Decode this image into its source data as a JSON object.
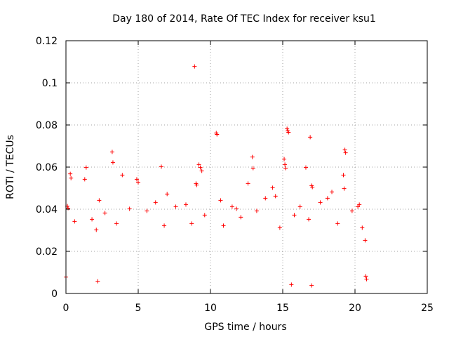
{
  "chart_data": {
    "type": "scatter",
    "title": "Day 180 of 2014, Rate Of TEC Index for receiver ksu1",
    "xlabel": "GPS time / hours",
    "ylabel": "ROTI / TECUs",
    "xlim": [
      0,
      25
    ],
    "ylim": [
      0,
      0.12
    ],
    "xticks": [
      0,
      5,
      10,
      15,
      20,
      25
    ],
    "xtick_labels": [
      "0",
      "5",
      "10",
      "15",
      "20",
      "25"
    ],
    "yticks": [
      0,
      0.02,
      0.04,
      0.06,
      0.08,
      0.1,
      0.12
    ],
    "ytick_labels": [
      "0",
      "0.02",
      "0.04",
      "0.06",
      "0.08",
      "0.1",
      "0.12"
    ],
    "grid": true,
    "marker": "+",
    "series_color": "#ff0000",
    "series": [
      {
        "name": "ROTI",
        "points": [
          [
            8.9,
            0.1078
          ],
          [
            10.4,
            0.0762
          ],
          [
            10.45,
            0.0755
          ],
          [
            15.3,
            0.0782
          ],
          [
            15.35,
            0.0772
          ],
          [
            15.4,
            0.0765
          ],
          [
            16.9,
            0.0742
          ],
          [
            3.2,
            0.0672
          ],
          [
            3.25,
            0.0622
          ],
          [
            19.3,
            0.0682
          ],
          [
            19.35,
            0.0668
          ],
          [
            12.9,
            0.0648
          ],
          [
            12.95,
            0.0595
          ],
          [
            15.1,
            0.0638
          ],
          [
            15.15,
            0.0612
          ],
          [
            15.2,
            0.0595
          ],
          [
            6.6,
            0.0602
          ],
          [
            9.3,
            0.0598
          ],
          [
            9.4,
            0.0582
          ],
          [
            9.2,
            0.0612
          ],
          [
            16.6,
            0.0598
          ],
          [
            0.3,
            0.0568
          ],
          [
            0.35,
            0.0548
          ],
          [
            1.4,
            0.0598
          ],
          [
            1.3,
            0.0542
          ],
          [
            3.9,
            0.0562
          ],
          [
            17.0,
            0.0512
          ],
          [
            17.05,
            0.0505
          ],
          [
            19.2,
            0.0562
          ],
          [
            19.25,
            0.0498
          ],
          [
            9.0,
            0.0522
          ],
          [
            9.05,
            0.0515
          ],
          [
            7.0,
            0.0472
          ],
          [
            20.3,
            0.0422
          ],
          [
            20.2,
            0.0412
          ],
          [
            0.1,
            0.0415
          ],
          [
            0.15,
            0.0405
          ],
          [
            2.3,
            0.0442
          ],
          [
            4.9,
            0.0542
          ],
          [
            5.0,
            0.0528
          ],
          [
            12.6,
            0.0522
          ],
          [
            14.3,
            0.0502
          ],
          [
            14.5,
            0.0462
          ],
          [
            18.4,
            0.0482
          ],
          [
            18.1,
            0.0452
          ],
          [
            10.7,
            0.0442
          ],
          [
            11.5,
            0.0412
          ],
          [
            13.8,
            0.0452
          ],
          [
            11.8,
            0.0402
          ],
          [
            8.3,
            0.0422
          ],
          [
            2.7,
            0.0382
          ],
          [
            6.2,
            0.0432
          ],
          [
            7.6,
            0.0412
          ],
          [
            5.6,
            0.0392
          ],
          [
            16.2,
            0.0412
          ],
          [
            17.6,
            0.0432
          ],
          [
            19.8,
            0.0392
          ],
          [
            20.5,
            0.0312
          ],
          [
            20.7,
            0.0252
          ],
          [
            20.75,
            0.0082
          ],
          [
            15.8,
            0.0372
          ],
          [
            13.2,
            0.0392
          ],
          [
            4.4,
            0.0402
          ],
          [
            9.6,
            0.0372
          ],
          [
            12.1,
            0.0362
          ],
          [
            1.8,
            0.0352
          ],
          [
            0.6,
            0.0342
          ],
          [
            8.7,
            0.0332
          ],
          [
            16.8,
            0.0352
          ],
          [
            3.5,
            0.0332
          ],
          [
            10.9,
            0.0322
          ],
          [
            6.8,
            0.0322
          ],
          [
            18.8,
            0.0332
          ],
          [
            14.8,
            0.0312
          ],
          [
            2.1,
            0.0302
          ],
          [
            15.6,
            0.0042
          ],
          [
            17.0,
            0.0038
          ],
          [
            2.2,
            0.0058
          ],
          [
            0.0,
            0.0078
          ],
          [
            20.8,
            0.0068
          ]
        ]
      }
    ]
  }
}
